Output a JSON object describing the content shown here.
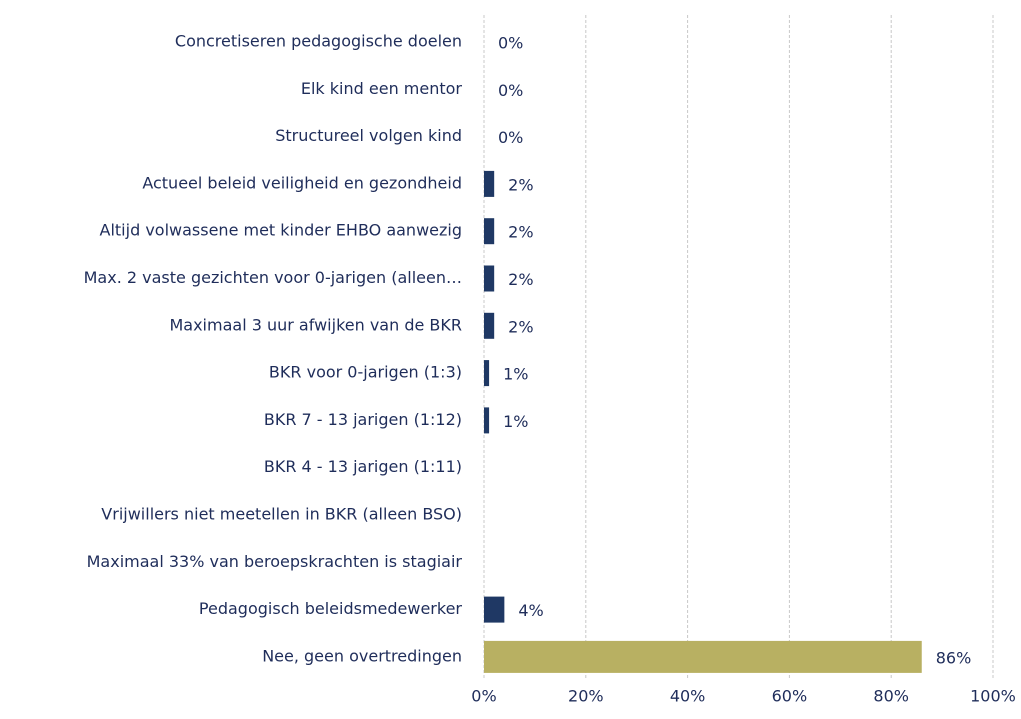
{
  "chart_data": {
    "type": "bar",
    "orientation": "horizontal",
    "categories": [
      "Concretiseren pedagogische doelen",
      "Elk kind een mentor",
      "Structureel volgen kind",
      "Actueel beleid veiligheid en gezondheid",
      "Altijd volwassene met kinder EHBO aanwezig",
      "Max. 2 vaste gezichten voor 0-jarigen (alleen…",
      "Maximaal 3 uur afwijken van de BKR",
      "BKR voor 0-jarigen (1:3)",
      "BKR 7 - 13 jarigen (1:12)",
      "BKR 4 - 13 jarigen (1:11)",
      "Vrijwillers  niet meetellen in BKR (alleen BSO)",
      "Maximaal 33% van beroepskrachten is stagiair",
      "Pedagogisch beleidsmedewerker",
      "Nee, geen overtredingen"
    ],
    "values": [
      0,
      0,
      0,
      2,
      2,
      2,
      2,
      1,
      1,
      null,
      null,
      null,
      4,
      86
    ],
    "value_labels": [
      "0%",
      "0%",
      "0%",
      "2%",
      "2%",
      "2%",
      "2%",
      "1%",
      "1%",
      null,
      null,
      null,
      "4%",
      "86%"
    ],
    "colors": [
      "#1f3864",
      "#1f3864",
      "#1f3864",
      "#1f3864",
      "#1f3864",
      "#1f3864",
      "#1f3864",
      "#1f3864",
      "#1f3864",
      "#1f3864",
      "#1f3864",
      "#1f3864",
      "#1f3864",
      "#b8b062"
    ],
    "xlim": [
      0,
      100
    ],
    "xticks": [
      {
        "value": 0,
        "label": "0%"
      },
      {
        "value": 20,
        "label": "20%"
      },
      {
        "value": 40,
        "label": "40%"
      },
      {
        "value": 60,
        "label": "60%"
      },
      {
        "value": 80,
        "label": "80%"
      },
      {
        "value": 100,
        "label": "100%"
      }
    ],
    "grid": true
  }
}
